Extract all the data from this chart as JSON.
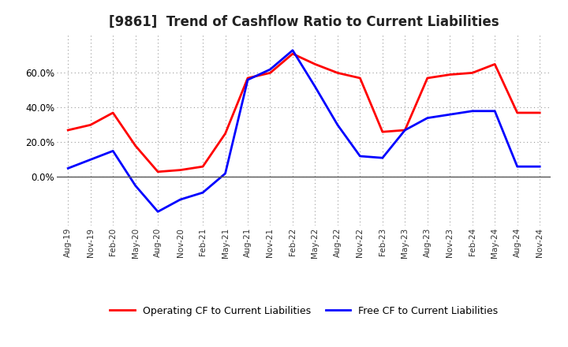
{
  "title": "[9861]  Trend of Cashflow Ratio to Current Liabilities",
  "x_labels": [
    "Aug-19",
    "Nov-19",
    "Feb-20",
    "May-20",
    "Aug-20",
    "Nov-20",
    "Feb-21",
    "May-21",
    "Aug-21",
    "Nov-21",
    "Feb-22",
    "May-22",
    "Aug-22",
    "Nov-22",
    "Feb-23",
    "May-23",
    "Aug-23",
    "Nov-23",
    "Feb-24",
    "May-24",
    "Aug-24",
    "Nov-24"
  ],
  "operating_cf": [
    0.27,
    0.3,
    0.37,
    0.18,
    0.03,
    0.04,
    0.06,
    0.25,
    0.57,
    0.6,
    0.71,
    0.65,
    0.6,
    0.57,
    0.26,
    0.27,
    0.57,
    0.59,
    0.6,
    0.65,
    0.37,
    0.37
  ],
  "free_cf": [
    0.05,
    0.1,
    0.15,
    -0.05,
    -0.2,
    -0.13,
    -0.09,
    0.02,
    0.56,
    0.62,
    0.73,
    0.52,
    0.3,
    0.12,
    0.11,
    0.27,
    0.34,
    0.36,
    0.38,
    0.38,
    0.06,
    0.06
  ],
  "operating_color": "#ff0000",
  "free_color": "#0000ff",
  "background_color": "#ffffff",
  "plot_bg_color": "#ffffff",
  "grid_color": "#999999",
  "ylim": [
    -0.28,
    0.82
  ],
  "yticks": [
    0.0,
    0.2,
    0.4,
    0.6
  ],
  "legend_labels": [
    "Operating CF to Current Liabilities",
    "Free CF to Current Liabilities"
  ]
}
